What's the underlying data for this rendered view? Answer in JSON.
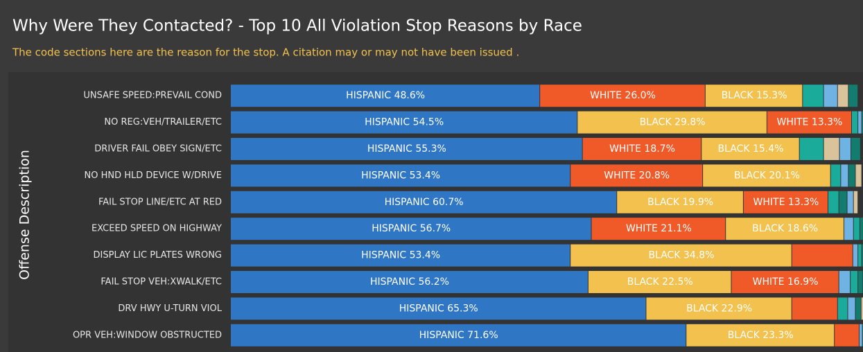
{
  "chart_data": {
    "type": "stacked_bar_100",
    "title": "Why Were They Contacted? - Top 10 All Violation Stop Reasons by Race",
    "subtitle": "The code sections here are the reason for the stop.  A citation may or may not have been issued .",
    "y_axis_label": "Offense Description",
    "categories": [
      "UNSAFE SPEED:PREVAIL COND",
      "NO REG:VEH/TRAILER/ETC",
      "DRIVER FAIL OBEY SIGN/ETC",
      "NO HND HLD DEVICE W/DRIVE",
      "FAIL STOP LINE/ETC AT RED",
      "EXCEED SPEED ON HIGHWAY",
      "DISPLAY LIC PLATES WRONG",
      "FAIL STOP VEH:XWALK/ETC",
      "DRV HWY U-TURN VIOL",
      "OPR VEH:WINDOW OBSTRUCTED"
    ],
    "xlim": [
      0,
      100
    ],
    "series": [
      {
        "name": "HISPANIC",
        "color": "#2f77c4",
        "values": [
          48.6,
          54.5,
          55.3,
          53.4,
          60.7,
          56.7,
          53.4,
          56.2,
          65.3,
          71.6
        ],
        "value_labels": [
          "HISPANIC 48.6%",
          "HISPANIC 54.5%",
          "HISPANIC 55.3%",
          "HISPANIC 53.4%",
          "HISPANIC 60.7%",
          "HISPANIC 56.7%",
          "HISPANIC 53.4%",
          "HISPANIC 56.2%",
          "HISPANIC 65.3%",
          "HISPANIC 71.6%"
        ]
      },
      {
        "name": "WHITE",
        "color": "#f05a28",
        "values": [
          26.0,
          13.3,
          18.7,
          20.8,
          13.3,
          21.1,
          9.6,
          16.9,
          7.2,
          3.9
        ],
        "value_labels": [
          "WHITE 26.0%",
          "WHITE 13.3%",
          "WHITE 18.7%",
          "WHITE 20.8%",
          "WHITE 13.3%",
          "WHITE 21.1%",
          null,
          "WHITE 16.9%",
          null,
          null
        ]
      },
      {
        "name": "BLACK",
        "color": "#f2c14e",
        "values": [
          15.3,
          29.8,
          15.4,
          20.1,
          19.9,
          18.6,
          34.8,
          22.5,
          22.9,
          23.3
        ],
        "value_labels": [
          "BLACK 15.3%",
          "BLACK 29.8%",
          "BLACK 15.4%",
          "BLACK 20.1%",
          "BLACK 19.9%",
          "BLACK 18.6%",
          "BLACK 34.8%",
          "BLACK 22.5%",
          "BLACK 22.9%",
          "BLACK 23.3%"
        ]
      },
      {
        "color": "#1aab9b",
        "values": [
          3.3,
          1.0,
          3.8,
          1.6,
          1.7,
          1.0,
          0.6,
          1.2,
          1.6,
          0.4
        ]
      },
      {
        "color": "#6fb2e4",
        "values": [
          2.2,
          0.6,
          1.8,
          1.2,
          1.0,
          1.5,
          0.8,
          1.8,
          1.2,
          0.5
        ]
      },
      {
        "color": "#127d6e",
        "values": [
          1.5,
          0.5,
          1.5,
          1.1,
          1.3,
          0.6,
          0.5,
          0.8,
          0.9,
          0.2
        ]
      },
      {
        "color": "#d9c39a",
        "values": [
          1.7,
          0.3,
          2.5,
          1.0,
          0.7,
          0.4,
          0.3,
          0.5,
          0.7,
          0.1
        ]
      }
    ]
  }
}
